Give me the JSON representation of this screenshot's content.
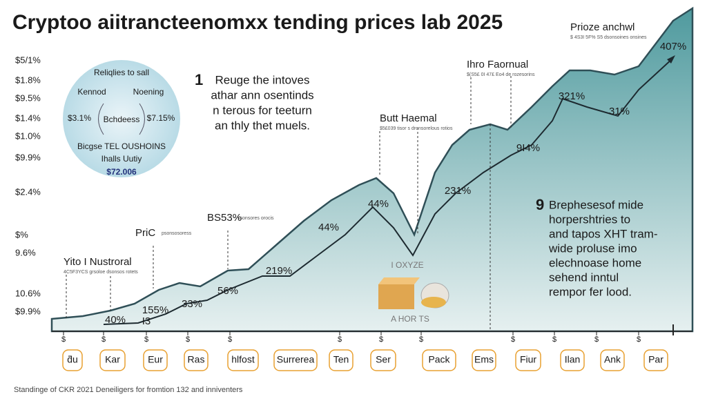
{
  "title": "Cryptoo aiitrancteenomxx tending prices lab 2025",
  "y_labels": [
    "$5/1%",
    "$1.8%",
    "$9.5%",
    "$1.4%",
    "$1.0%",
    "$9.9%",
    "$2.4%",
    "$%",
    "9.6%",
    "10.6%",
    "$9.9%"
  ],
  "x_ticks": [
    "$",
    "$",
    "$",
    "$",
    "$",
    "$",
    "$",
    "$",
    "$",
    "$",
    "$",
    "$"
  ],
  "categories": [
    "ƌu",
    "Kar",
    "Eur",
    "Ras",
    "hlfost",
    "Surrerea",
    "Ten",
    "Ser",
    "Pack",
    "Ems",
    "Fiur",
    "Ilan",
    "Ank",
    "Par"
  ],
  "point_labels": [
    "407%",
    "321%",
    "31%",
    "9I4%",
    "231%",
    "44%",
    "44%",
    "219%",
    "56%",
    "33%",
    "155%",
    "40%",
    "I3"
  ],
  "annotations": [
    {
      "title": "Prioze anchwl",
      "sub": "$ 4S3I 5F% S5 dsonsoines onsines"
    },
    {
      "title": "Ihro Faornual",
      "sub": "$(S5£ 0I 47£ Eo4 de rozesorins"
    },
    {
      "title": "Butt Haemal",
      "sub": "$5£039 tisor s dronsorelous rotios"
    },
    {
      "title": "BS53%",
      "sub": "ssonsores orocis"
    },
    {
      "title": "PriC",
      "sub": "psonsosoress"
    },
    {
      "title": "Yito I Nustroral",
      "sub": "4C5F3YCS grsoloe dsonsos rotets"
    }
  ],
  "circle": {
    "title": "Reliqlies to sall",
    "left": "Kennod",
    "right": "Noening",
    "left_value": "$3.1%",
    "center": "Bchdeess",
    "right_value": "$7.15%",
    "line1": "Bicgse TEL OUSHOINS",
    "line2": "Ihalls Uutiy",
    "total": "$72.006"
  },
  "block1": {
    "number": "1",
    "lines": [
      "Reuge the intoves",
      "athar ann osentinds",
      "n terous for teeturn",
      "an thly thet muels."
    ]
  },
  "block2": {
    "number": "9",
    "lines": [
      "Brephesesof mide",
      "horpershtries to",
      "and tapos XHT tram-",
      "wide proluse imo",
      "elechnoase home",
      "sehend inntul",
      "rempor fer lood."
    ]
  },
  "icon_labels": [
    "I OXYZE",
    "A HOR TS"
  ],
  "footer": "Standinge of CKR 2021 Deneiligers for fromtion 132 and inniventers"
}
